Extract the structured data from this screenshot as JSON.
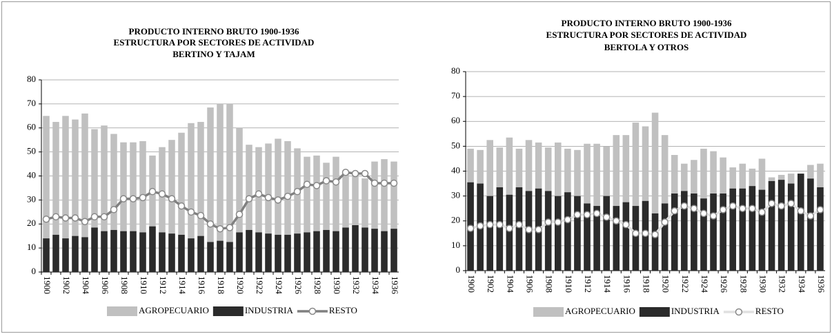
{
  "chart_data": [
    {
      "type": "bar",
      "title": [
        "PRODUCTO INTERNO BRUTO 1900-1936",
        "ESTRUCTURA POR SECTORES DE ACTIVIDAD",
        "BERTINO Y TAJAM"
      ],
      "categories": [
        "1900",
        null,
        "1902",
        null,
        "1904",
        null,
        "1906",
        null,
        "1908",
        null,
        "1910",
        null,
        "1912",
        null,
        "1914",
        null,
        "1916",
        null,
        "1918",
        null,
        "1920",
        null,
        "1922",
        null,
        "1924",
        null,
        "1926",
        null,
        "1928",
        null,
        "1930",
        null,
        "1932",
        null,
        "1934",
        null,
        "1936"
      ],
      "series": [
        {
          "name": "AGROPECUARIO",
          "type": "bar",
          "color": "#c0c0c0",
          "values": [
            65,
            62.5,
            65,
            63.5,
            66,
            59.5,
            61,
            57.5,
            54,
            54,
            54.5,
            48.5,
            52,
            55,
            58,
            62,
            62.5,
            68.5,
            70,
            70,
            60,
            53,
            52,
            53.5,
            55.5,
            54.5,
            51.5,
            48,
            48.5,
            45.5,
            48,
            42,
            41,
            39,
            46,
            47,
            46
          ]
        },
        {
          "name": "INDUSTRIA",
          "type": "bar",
          "color": "#2b2b2b",
          "values": [
            14,
            15.5,
            14,
            15,
            14.5,
            18.5,
            17,
            17.5,
            17,
            17,
            16.5,
            19,
            16.5,
            16,
            15.5,
            14,
            15,
            12.5,
            13,
            12.5,
            16.5,
            17.5,
            16.5,
            16,
            15.5,
            15.5,
            16,
            16.5,
            17,
            17.5,
            17,
            18.5,
            19.5,
            18.5,
            18,
            17,
            18
          ]
        },
        {
          "name": "RESTO",
          "type": "line",
          "color": "#808080",
          "values": [
            22,
            23,
            22.5,
            22.5,
            21,
            23,
            23,
            26,
            30.5,
            30.5,
            31,
            33.5,
            32.5,
            30.5,
            27.5,
            25,
            23.5,
            20,
            18,
            18.5,
            24,
            30.5,
            32.5,
            31,
            30,
            31.5,
            33.5,
            36.5,
            36,
            38,
            37.5,
            41.5,
            41,
            41,
            37,
            37,
            37
          ]
        }
      ],
      "ylim": [
        0,
        80
      ],
      "yticks": [
        0,
        10,
        20,
        30,
        40,
        50,
        60,
        70,
        80
      ],
      "grid": true
    },
    {
      "type": "bar",
      "title": [
        "PRODUCTO INTERNO BRUTO 1900-1936",
        "ESTRUCTURA POR SECTORES DE ACTIVIDAD",
        "BERTOLA Y OTROS"
      ],
      "categories": [
        "1900",
        null,
        "1902",
        null,
        "1904",
        null,
        "1906",
        null,
        "1908",
        null,
        "1910",
        null,
        "1912",
        null,
        "1914",
        null,
        "1916",
        null,
        "1918",
        null,
        "1920",
        null,
        "1922",
        null,
        "1924",
        null,
        "1926",
        null,
        "1928",
        null,
        "1930",
        null,
        "1932",
        null,
        "1934",
        null,
        "1936"
      ],
      "series": [
        {
          "name": "AGROPECUARIO",
          "type": "bar",
          "color": "#c0c0c0",
          "values": [
            49,
            48.5,
            52.5,
            49.5,
            53.5,
            49,
            52.5,
            51.5,
            49.5,
            51.5,
            49,
            48.5,
            51,
            51,
            50,
            54.5,
            54.5,
            59.5,
            58,
            63.5,
            54.5,
            46.5,
            43,
            44.5,
            49,
            48,
            45.5,
            41.5,
            43,
            41,
            45,
            37.5,
            38.5,
            39,
            38.5,
            42.5,
            43
          ]
        },
        {
          "name": "INDUSTRIA",
          "type": "bar",
          "color": "#2b2b2b",
          "values": [
            35.5,
            35,
            30,
            33.5,
            30.5,
            33.5,
            32,
            33,
            32,
            30,
            31.5,
            30,
            27,
            26,
            30,
            26,
            27.5,
            26,
            28,
            23,
            27,
            31,
            32,
            31,
            29,
            31,
            31,
            33,
            33,
            34,
            32.5,
            36,
            36.5,
            35,
            39,
            37,
            33.5
          ]
        },
        {
          "name": "RESTO",
          "type": "line",
          "color": "#e0e0e0",
          "values": [
            17,
            18,
            18.5,
            18.5,
            17,
            18.5,
            16.5,
            16.5,
            19.5,
            19.5,
            20.5,
            22.5,
            22.5,
            23,
            21.5,
            20,
            18.5,
            15,
            15,
            14.5,
            19.5,
            24,
            26,
            25,
            23,
            22,
            24.5,
            26,
            25,
            25,
            23.5,
            27,
            26,
            27,
            24,
            22,
            24.5
          ]
        }
      ],
      "ylim": [
        0,
        80
      ],
      "yticks": [
        0,
        10,
        20,
        30,
        40,
        50,
        60,
        70,
        80
      ],
      "grid": true
    }
  ]
}
